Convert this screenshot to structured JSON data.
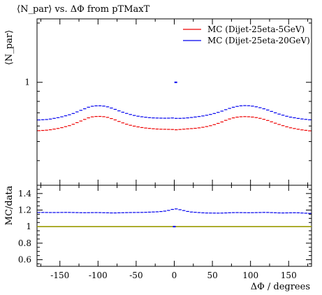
{
  "chart_data": {
    "type": "line",
    "title": "⟨N_par⟩ vs. ΔΦ from pTMaxT",
    "ylabel": "⟨N_par⟩",
    "xlabel": "ΔΦ / degrees",
    "xlim": [
      -180,
      180
    ],
    "x_ticks": [
      -150,
      -100,
      -50,
      0,
      50,
      100,
      150
    ],
    "top_panel": {
      "y_scale": "log",
      "ylim": [
        0.3,
        2.1
      ],
      "y_tick_labels": [
        "1"
      ],
      "legend_position": "top-right",
      "series": [
        {
          "name": "MC (Dijet-25eta-5GeV)",
          "color": "#ee0000",
          "x": [
            -177.5,
            -165,
            -150,
            -135,
            -120,
            -110,
            -100,
            -90,
            -80,
            -70,
            -60,
            -50,
            -40,
            -30,
            -20,
            -10,
            -2.5,
            2.5,
            10,
            20,
            30,
            40,
            50,
            60,
            70,
            80,
            90,
            100,
            110,
            120,
            135,
            150,
            165,
            177.5
          ],
          "y": [
            0.568,
            0.572,
            0.585,
            0.606,
            0.642,
            0.666,
            0.672,
            0.668,
            0.65,
            0.627,
            0.608,
            0.596,
            0.587,
            0.582,
            0.578,
            0.577,
            0.576,
            0.574,
            0.577,
            0.581,
            0.585,
            0.593,
            0.605,
            0.623,
            0.647,
            0.664,
            0.67,
            0.668,
            0.66,
            0.645,
            0.615,
            0.59,
            0.575,
            0.567
          ]
        },
        {
          "name": "MC (Dijet-25eta-20GeV)",
          "color": "#0000ee",
          "x": [
            -177.5,
            -165,
            -150,
            -135,
            -120,
            -110,
            -100,
            -90,
            -80,
            -70,
            -60,
            -50,
            -40,
            -30,
            -20,
            -10,
            -2.5,
            2.5,
            10,
            20,
            30,
            40,
            50,
            60,
            70,
            80,
            90,
            100,
            110,
            120,
            135,
            150,
            165,
            177.5
          ],
          "y": [
            0.644,
            0.648,
            0.664,
            0.688,
            0.727,
            0.754,
            0.761,
            0.756,
            0.735,
            0.71,
            0.69,
            0.675,
            0.666,
            0.66,
            0.658,
            0.657,
            0.659,
            0.656,
            0.656,
            0.661,
            0.668,
            0.677,
            0.69,
            0.708,
            0.732,
            0.752,
            0.762,
            0.76,
            0.748,
            0.729,
            0.694,
            0.668,
            0.653,
            0.645
          ]
        }
      ],
      "annotation_point": {
        "x": 2,
        "y": 1.0,
        "color": "#0000ee"
      }
    },
    "ratio_panel": {
      "ylabel": "MC/data",
      "ylim": [
        0.52,
        1.5
      ],
      "y_ticks": [
        0.6,
        0.8,
        1,
        1.2,
        1.4
      ],
      "reference": {
        "y": 1.0,
        "color": "#9a9a00"
      },
      "series": [
        {
          "color": "#0000ee",
          "x": [
            -177.5,
            -160,
            -140,
            -120,
            -100,
            -80,
            -60,
            -40,
            -20,
            -10,
            -2.5,
            2.5,
            10,
            20,
            40,
            60,
            80,
            100,
            120,
            140,
            160,
            177.5
          ],
          "y": [
            1.172,
            1.17,
            1.172,
            1.168,
            1.17,
            1.165,
            1.17,
            1.172,
            1.18,
            1.19,
            1.208,
            1.214,
            1.2,
            1.178,
            1.165,
            1.163,
            1.17,
            1.168,
            1.172,
            1.165,
            1.168,
            1.16
          ]
        }
      ],
      "center_marker": {
        "x": 0,
        "y": 1.0,
        "color": "#0000ee"
      }
    }
  }
}
